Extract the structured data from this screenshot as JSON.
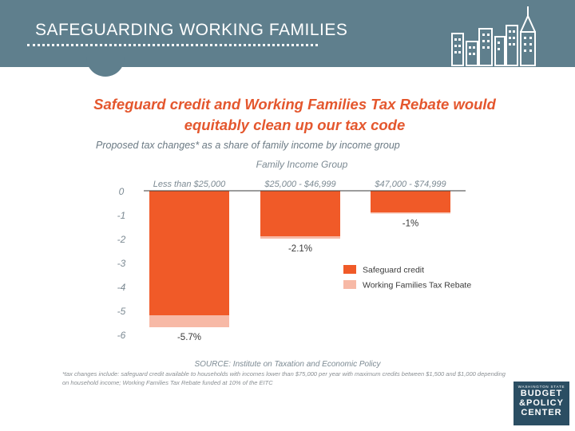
{
  "header": {
    "title": "SAFEGUARDING WORKING FAMILIES"
  },
  "chart_data": {
    "type": "bar",
    "title": "Safeguard credit and Working Families Tax Rebate would equitably clean up our tax code",
    "title_lines": [
      "Safeguard credit and Working Families Tax Rebate would",
      "equitably clean up our tax code"
    ],
    "subtitle": "Proposed tax changes* as a share of family income by income group",
    "xlabel": "Family Income Group",
    "categories": [
      "Less than $25,000",
      "$25,000 - $46,999",
      "$47,000 - $74,999"
    ],
    "series": [
      {
        "name": "Safeguard credit",
        "values": [
          -5.2,
          -1.9,
          -0.9
        ],
        "color": "#f05a28"
      },
      {
        "name": "Working Families Tax Rebate",
        "values": [
          -0.5,
          -0.1,
          -0.05
        ],
        "color": "#f7b9a6"
      }
    ],
    "data_labels": [
      "-5.7%",
      "-2.1%",
      "-1%"
    ],
    "yticks": [
      "0",
      "-1",
      "-2",
      "-3",
      "-4",
      "-5",
      "-6"
    ],
    "ylim": [
      -6,
      0
    ],
    "stacked": true,
    "legend_position": "right"
  },
  "source": "SOURCE: Institute on Taxation and Economic Policy",
  "footnote": "*tax changes include: safeguard credit available to households with incomes lower than $75,000 per year with maximum credits between $1,500 and $1,000 depending on household income; Working Families Tax Rebate funded at 10% of the EITC",
  "logo": {
    "top": "WASHINGTON STATE",
    "lines": [
      "BUDGET",
      "&POLICY",
      "CENTER"
    ]
  }
}
